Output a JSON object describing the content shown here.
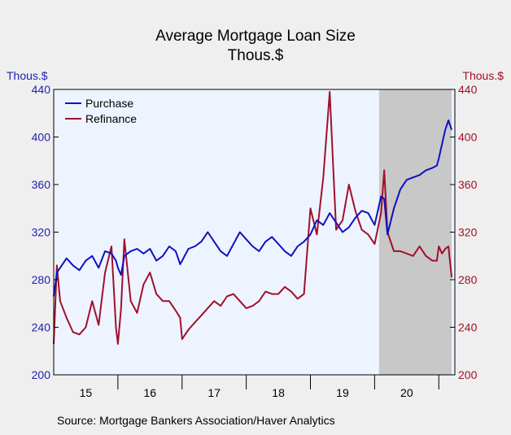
{
  "chart_data": {
    "type": "line",
    "title": "Average Mortgage Loan Size",
    "subtitle": "Thous.$",
    "left_axis_label": "Thous.$",
    "right_axis_label": "Thous.$",
    "source": "Source:  Mortgage Bankers Association/Haver Analytics",
    "ylim": [
      200,
      440
    ],
    "yticks": [
      "200",
      "240",
      "280",
      "320",
      "360",
      "400",
      "440"
    ],
    "x_tick_labels": [
      "15",
      "16",
      "17",
      "18",
      "19",
      "20"
    ],
    "xlim": [
      2015.0,
      2021.25
    ],
    "grid": false,
    "legend_position": "top-left",
    "shaded_region": {
      "start": 2020.07,
      "end": 2021.2
    },
    "colors": {
      "purchase": "#1010c0",
      "refinance": "#a0102c",
      "left_axis": "#2020b0",
      "right_axis": "#a0102c",
      "plot_bg": "#eef4ff",
      "shade": "#c8c8c8"
    },
    "series": [
      {
        "name": "Purchase",
        "color": "#1010c0",
        "x": [
          2015.0,
          2015.05,
          2015.1,
          2015.2,
          2015.3,
          2015.4,
          2015.5,
          2015.6,
          2015.7,
          2015.8,
          2015.9,
          2015.97,
          2016.0,
          2016.05,
          2016.1,
          2016.2,
          2016.3,
          2016.4,
          2016.5,
          2016.6,
          2016.7,
          2016.8,
          2016.9,
          2016.97,
          2017.0,
          2017.1,
          2017.2,
          2017.3,
          2017.4,
          2017.5,
          2017.6,
          2017.7,
          2017.8,
          2017.9,
          2018.0,
          2018.1,
          2018.2,
          2018.3,
          2018.4,
          2018.5,
          2018.6,
          2018.7,
          2018.8,
          2018.9,
          2019.0,
          2019.1,
          2019.2,
          2019.3,
          2019.4,
          2019.5,
          2019.6,
          2019.7,
          2019.8,
          2019.9,
          2020.0,
          2020.1,
          2020.15,
          2020.2,
          2020.3,
          2020.4,
          2020.5,
          2020.6,
          2020.7,
          2020.8,
          2020.9,
          2020.97,
          2021.0,
          2021.05,
          2021.1,
          2021.15,
          2021.2
        ],
        "values": [
          266,
          286,
          290,
          298,
          292,
          288,
          296,
          300,
          290,
          304,
          302,
          296,
          290,
          284,
          300,
          304,
          306,
          302,
          306,
          296,
          300,
          308,
          304,
          293,
          296,
          306,
          308,
          312,
          320,
          312,
          304,
          300,
          310,
          320,
          314,
          308,
          304,
          312,
          316,
          310,
          304,
          300,
          308,
          312,
          318,
          330,
          326,
          336,
          328,
          320,
          324,
          332,
          338,
          336,
          326,
          350,
          348,
          318,
          340,
          356,
          364,
          366,
          368,
          372,
          374,
          376,
          382,
          394,
          406,
          414,
          406
        ]
      },
      {
        "name": "Refinance",
        "color": "#a0102c",
        "x": [
          2015.0,
          2015.05,
          2015.1,
          2015.2,
          2015.3,
          2015.4,
          2015.5,
          2015.6,
          2015.7,
          2015.8,
          2015.9,
          2015.97,
          2016.0,
          2016.05,
          2016.1,
          2016.2,
          2016.3,
          2016.4,
          2016.5,
          2016.6,
          2016.7,
          2016.8,
          2016.9,
          2016.97,
          2017.0,
          2017.1,
          2017.2,
          2017.3,
          2017.4,
          2017.5,
          2017.6,
          2017.7,
          2017.8,
          2017.9,
          2018.0,
          2018.1,
          2018.2,
          2018.3,
          2018.4,
          2018.5,
          2018.6,
          2018.7,
          2018.8,
          2018.9,
          2019.0,
          2019.1,
          2019.2,
          2019.3,
          2019.4,
          2019.5,
          2019.6,
          2019.7,
          2019.8,
          2019.9,
          2020.0,
          2020.1,
          2020.15,
          2020.2,
          2020.3,
          2020.4,
          2020.5,
          2020.6,
          2020.7,
          2020.8,
          2020.9,
          2020.97,
          2021.0,
          2021.05,
          2021.1,
          2021.15,
          2021.2
        ],
        "values": [
          226,
          292,
          262,
          248,
          236,
          234,
          240,
          262,
          242,
          286,
          308,
          240,
          226,
          256,
          314,
          262,
          252,
          276,
          286,
          268,
          262,
          262,
          254,
          248,
          230,
          238,
          244,
          250,
          256,
          262,
          258,
          266,
          268,
          262,
          256,
          258,
          262,
          270,
          268,
          268,
          274,
          270,
          264,
          268,
          340,
          318,
          366,
          438,
          322,
          330,
          360,
          338,
          322,
          318,
          310,
          336,
          372,
          320,
          304,
          304,
          302,
          300,
          308,
          300,
          296,
          296,
          308,
          302,
          306,
          308,
          282
        ]
      }
    ]
  }
}
